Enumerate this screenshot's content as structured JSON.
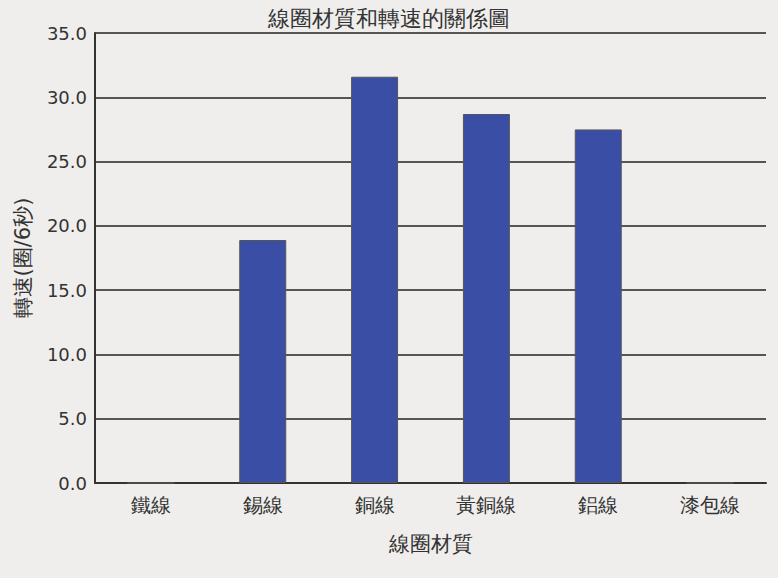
{
  "chart_data": {
    "type": "bar",
    "title": "線圈材質和轉速的關係圖",
    "x_label": "線圈材質",
    "y_label": "轉速(圈/6秒)",
    "categories": [
      "鐵線",
      "錫線",
      "銅線",
      "黃銅線",
      "鋁線",
      "漆包線"
    ],
    "values": [
      0,
      18.9,
      31.6,
      28.7,
      27.5,
      0
    ],
    "color": "#3b4ea6",
    "ylim": [
      0,
      35
    ],
    "yticks": [
      {
        "value": 0,
        "label": "0.0"
      },
      {
        "value": 5,
        "label": "5.0"
      },
      {
        "value": 10,
        "label": "10.0"
      },
      {
        "value": 15,
        "label": "15.0"
      },
      {
        "value": 20,
        "label": "20.0"
      },
      {
        "value": 25,
        "label": "25.0"
      },
      {
        "value": 30,
        "label": "30.0"
      },
      {
        "value": 35,
        "label": "35.0"
      }
    ],
    "grid": true
  }
}
